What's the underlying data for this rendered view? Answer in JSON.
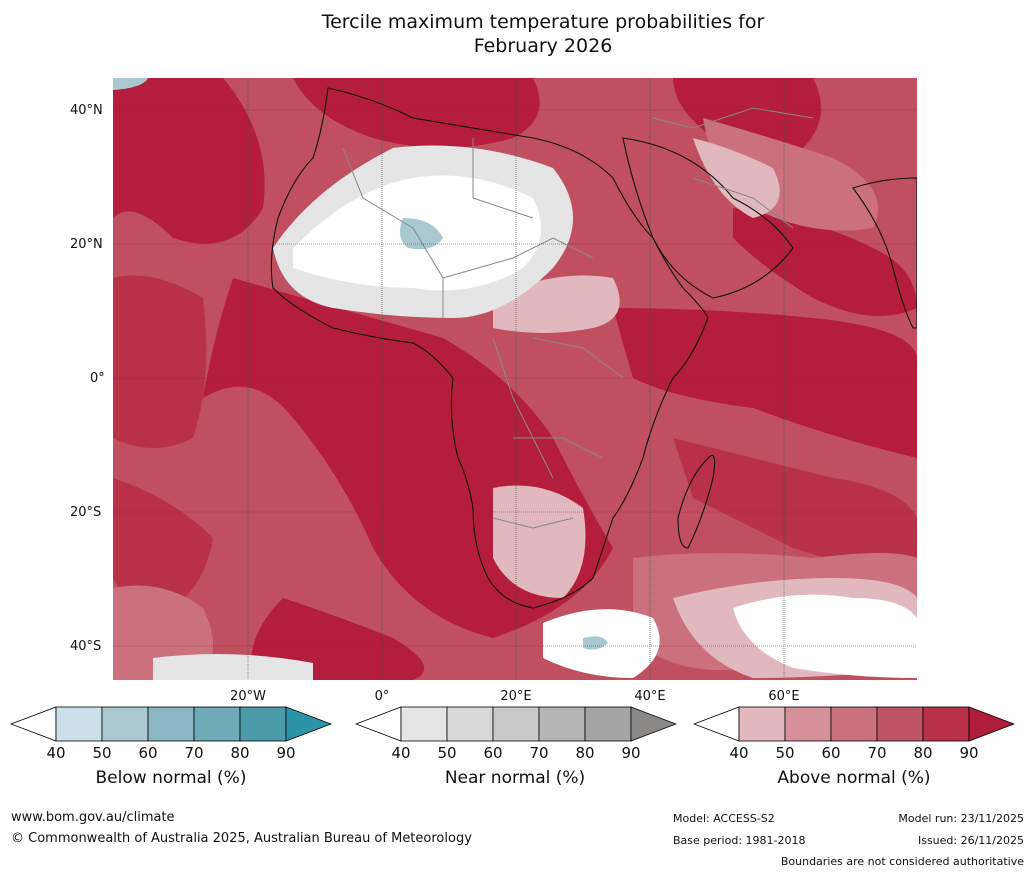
{
  "title": {
    "line1": "Tercile maximum temperature probabilities for",
    "line2": "February 2026"
  },
  "axes": {
    "lat_labels": [
      "40°N",
      "20°N",
      "0°",
      "20°S",
      "40°S"
    ],
    "lon_labels": [
      "20°W",
      "0°",
      "20°E",
      "40°E",
      "60°E"
    ]
  },
  "colorbars": [
    {
      "label": "Below normal (%)",
      "ticks": [
        "40",
        "50",
        "60",
        "70",
        "80",
        "90"
      ],
      "low_color": "#ffffff",
      "colors": [
        "#cbe1e7",
        "#a9c8cf",
        "#89b6c1",
        "#6eaab7",
        "#4a9aaa"
      ],
      "high_color": "#2d93a8"
    },
    {
      "label": "Near normal (%)",
      "ticks": [
        "40",
        "50",
        "60",
        "70",
        "80",
        "90"
      ],
      "low_color": "#ffffff",
      "colors": [
        "#e5e5e5",
        "#d8d8d8",
        "#c9c9c9",
        "#b5b5b5",
        "#a5a4a4"
      ],
      "high_color": "#8a8787"
    },
    {
      "label": "Above normal (%)",
      "ticks": [
        "40",
        "50",
        "60",
        "70",
        "80",
        "90"
      ],
      "low_color": "#ffffff",
      "colors": [
        "#e2b8bf",
        "#d69099",
        "#cb717d",
        "#c05464",
        "#b83146"
      ],
      "high_color": "#b01d3b"
    }
  ],
  "map_colors": {
    "ocean_base": "#c0505f",
    "above_90": "#b41d3b",
    "above_80": "#b83146",
    "above_70": "#c05464",
    "above_60": "#cb717d",
    "above_50": "#d69099",
    "above_40": "#e2b8bf",
    "near_40": "#e5e5e5",
    "near_50": "#d8d8d8",
    "below_40": "#cbe1e7",
    "below_50": "#a9c8cf",
    "white": "#ffffff"
  },
  "footer": {
    "website": "www.bom.gov.au/climate",
    "copyright": "© Commonwealth of Australia 2025, Australian Bureau of Meteorology",
    "model": "Model: ACCESS-S2",
    "base_period": "Base period: 1981-2018",
    "model_run": "Model run: 23/11/2025",
    "issued": "Issued: 26/11/2025",
    "boundaries_note": "Boundaries are not considered authoritative"
  }
}
